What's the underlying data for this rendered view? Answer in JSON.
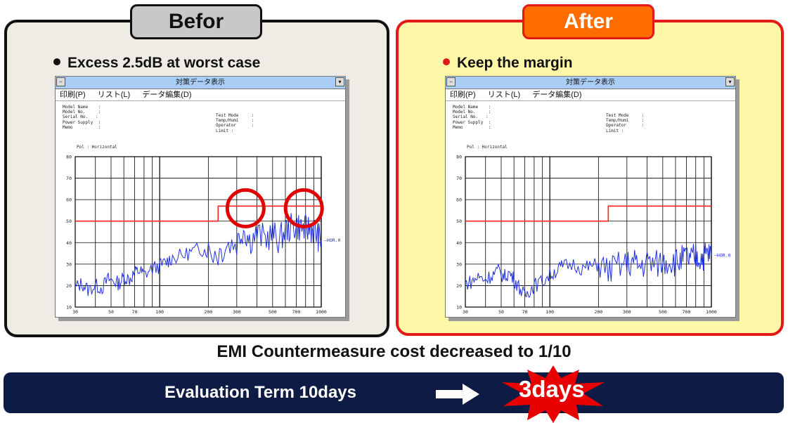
{
  "before": {
    "tab_label": "Befor",
    "bullet": "Excess 2.5dB at worst case",
    "bullet_color": "#111111"
  },
  "after": {
    "tab_label": "After",
    "bullet": "Keep the margin",
    "bullet_color": "#e31818"
  },
  "window": {
    "title": "対策データ表示",
    "menu": [
      "印刷(P)",
      "リスト(L)",
      "データ編集(D)"
    ],
    "meta_left": "Model Name    :\nModel No.     :\nSerial No.   :\nPower Supply  :\nMemo          :",
    "meta_right": "Test Mode     :\nTemp/Humi     :\nOperator      :\nLimit :",
    "pol": "Pol : Horizontal"
  },
  "caption": "EMI Countermeasure cost decreased to 1/10",
  "banner": {
    "text": "Evaluation Term 10days",
    "highlight": "3days"
  },
  "chart_data": [
    {
      "type": "line",
      "title": "Befor",
      "x_scale": "log",
      "xlim": [
        30,
        1000
      ],
      "ylim": [
        10,
        80
      ],
      "x_ticks": [
        "30",
        "50",
        "70",
        "100",
        "200",
        "300",
        "500",
        "700",
        "1000"
      ],
      "y_ticks": [
        "10",
        "20",
        "30",
        "40",
        "50",
        "60",
        "70",
        "80"
      ],
      "series_label": "HOR.0",
      "limit_line": {
        "x": [
          30,
          230,
          230,
          1000
        ],
        "y": [
          50,
          50,
          57,
          57
        ],
        "color": "#ff2020"
      },
      "series": [
        {
          "name": "HOR.0",
          "color": "#2030e0",
          "x": [
            30,
            33,
            36,
            40,
            44,
            48,
            52,
            56,
            60,
            65,
            70,
            75,
            80,
            90,
            100,
            110,
            120,
            140,
            160,
            180,
            200,
            230,
            260,
            300,
            330,
            360,
            400,
            450,
            500,
            550,
            600,
            650,
            700,
            750,
            800,
            850,
            900,
            950,
            1000
          ],
          "y": [
            19,
            21,
            18,
            20,
            19,
            23,
            22,
            21,
            24,
            23,
            26,
            27,
            25,
            28,
            29,
            31,
            33,
            34,
            36,
            37,
            36,
            35,
            39,
            40,
            47,
            41,
            44,
            42,
            44,
            41,
            46,
            47,
            48,
            47,
            46,
            47,
            46,
            43,
            41
          ]
        }
      ],
      "highlights": [
        {
          "x": 340,
          "y": 56
        },
        {
          "x": 780,
          "y": 56
        }
      ]
    },
    {
      "type": "line",
      "title": "After",
      "x_scale": "log",
      "xlim": [
        30,
        1000
      ],
      "ylim": [
        10,
        80
      ],
      "x_ticks": [
        "30",
        "50",
        "70",
        "100",
        "200",
        "300",
        "500",
        "700",
        "1000"
      ],
      "y_ticks": [
        "10",
        "20",
        "30",
        "40",
        "50",
        "60",
        "70",
        "80"
      ],
      "series_label": "HOR.0",
      "limit_line": {
        "x": [
          30,
          230,
          230,
          1000
        ],
        "y": [
          50,
          50,
          57,
          57
        ],
        "color": "#ff2020"
      },
      "series": [
        {
          "name": "HOR.0",
          "color": "#2030e0",
          "x": [
            30,
            33,
            36,
            40,
            44,
            48,
            52,
            56,
            60,
            65,
            70,
            75,
            80,
            90,
            100,
            110,
            120,
            140,
            160,
            180,
            200,
            230,
            260,
            300,
            330,
            360,
            400,
            450,
            500,
            550,
            600,
            650,
            700,
            750,
            800,
            850,
            900,
            950,
            1000
          ],
          "y": [
            21,
            22,
            24,
            23,
            25,
            27,
            24,
            26,
            23,
            19,
            15,
            18,
            20,
            22,
            25,
            27,
            29,
            30,
            28,
            29,
            30,
            27,
            29,
            30,
            31,
            29,
            31,
            30,
            31,
            32,
            31,
            32,
            33,
            32,
            34,
            33,
            34,
            35,
            34
          ]
        }
      ]
    }
  ]
}
